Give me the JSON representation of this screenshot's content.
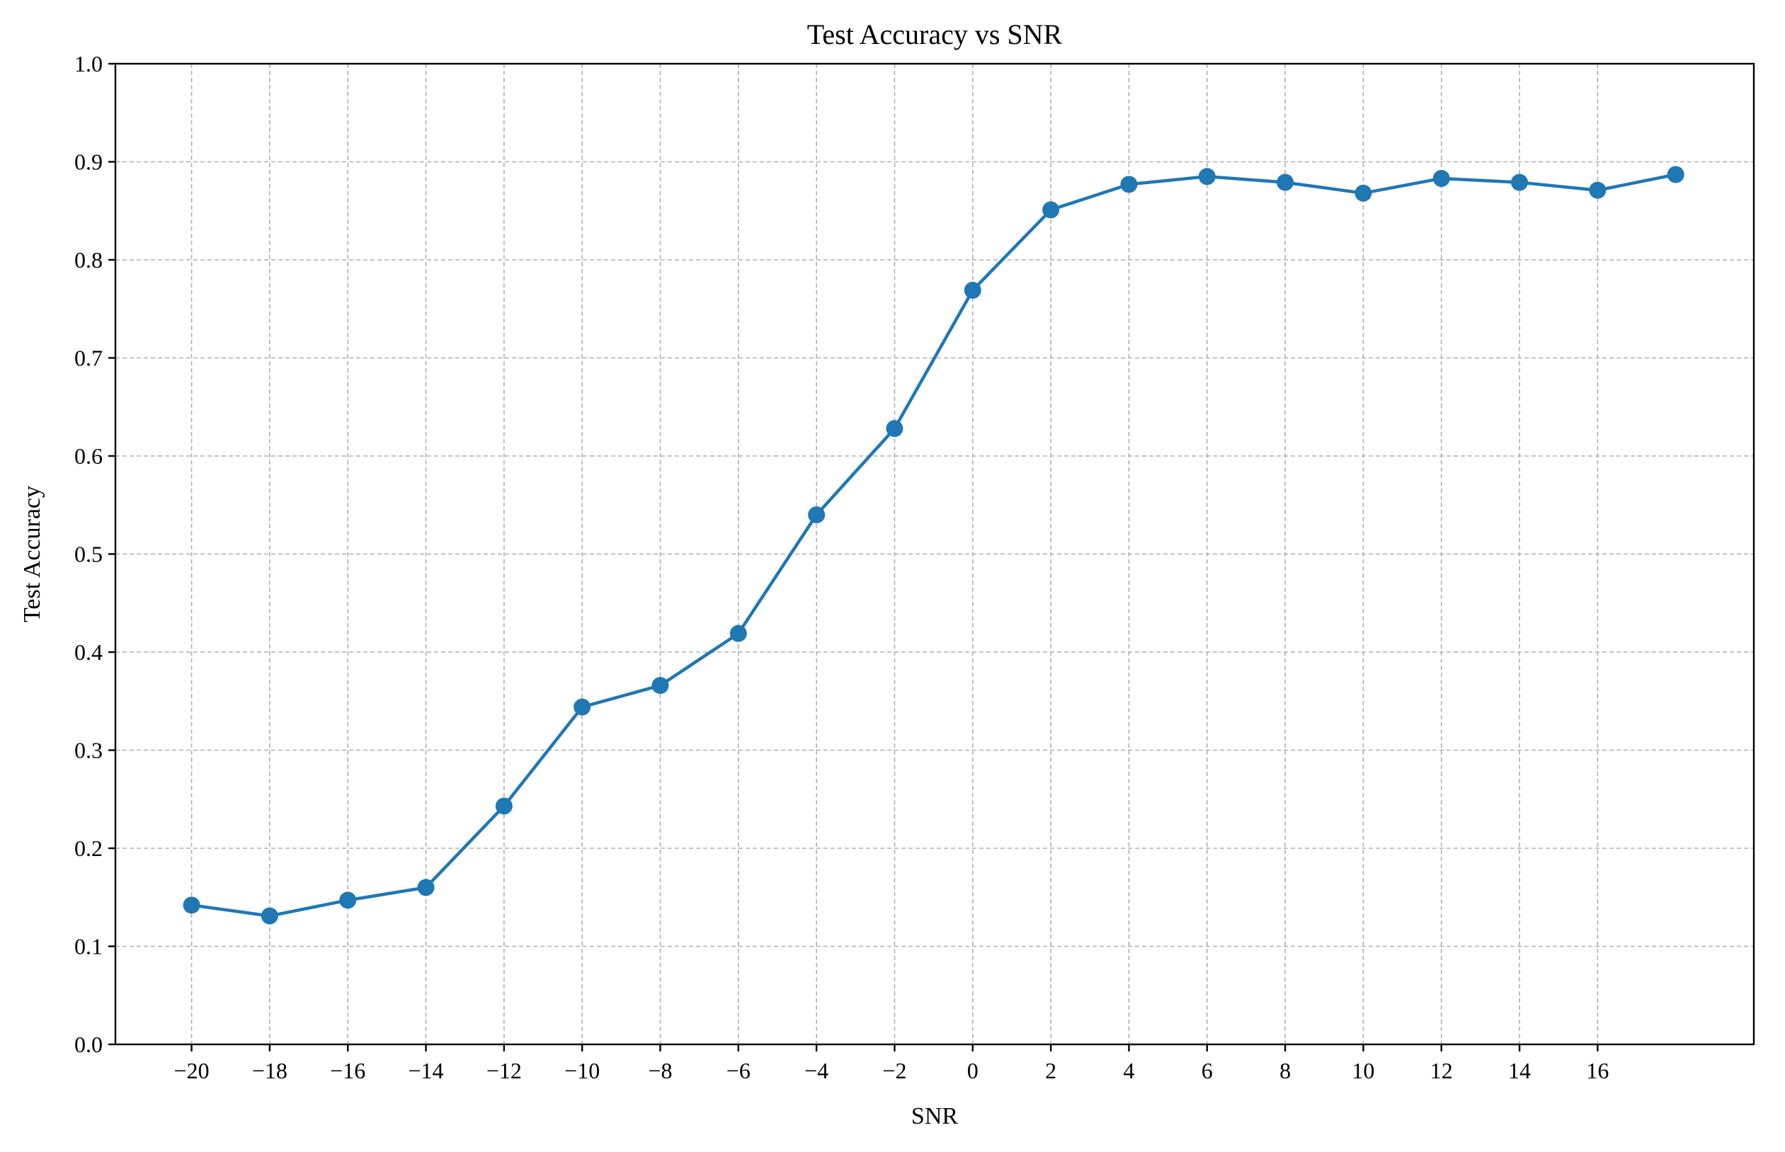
{
  "chart_data": {
    "type": "line",
    "title": "Test Accuracy vs SNR",
    "xlabel": "SNR",
    "ylabel": "Test Accuracy",
    "x": [
      -20,
      -18,
      -16,
      -14,
      -12,
      -10,
      -8,
      -6,
      -4,
      -2,
      0,
      2,
      4,
      6,
      8,
      10,
      12,
      14,
      16,
      18
    ],
    "x_ticks": [
      -20,
      -18,
      -16,
      -14,
      -12,
      -10,
      -8,
      -6,
      -4,
      -2,
      0,
      2,
      4,
      6,
      8,
      10,
      12,
      14,
      16
    ],
    "x_tick_labels": [
      "−20",
      "−18",
      "−16",
      "−14",
      "−12",
      "−10",
      "−8",
      "−6",
      "−4",
      "−2",
      "0",
      "2",
      "4",
      "6",
      "8",
      "10",
      "12",
      "14",
      "16"
    ],
    "y_ticks": [
      0.0,
      0.1,
      0.2,
      0.3,
      0.4,
      0.5,
      0.6,
      0.7,
      0.8,
      0.9,
      1.0
    ],
    "y_tick_labels": [
      "0.0",
      "0.1",
      "0.2",
      "0.3",
      "0.4",
      "0.5",
      "0.6",
      "0.7",
      "0.8",
      "0.9",
      "1.0"
    ],
    "series": [
      {
        "values": [
          0.142,
          0.131,
          0.147,
          0.16,
          0.243,
          0.344,
          0.366,
          0.419,
          0.54,
          0.628,
          0.769,
          0.851,
          0.877,
          0.885,
          0.879,
          0.868,
          0.883,
          0.879,
          0.871,
          0.887
        ],
        "color": "#1f77b4"
      }
    ],
    "xlim": [
      -21.95,
      20.0
    ],
    "ylim": [
      0.0,
      1.0
    ],
    "grid": true,
    "marker": "circle"
  }
}
